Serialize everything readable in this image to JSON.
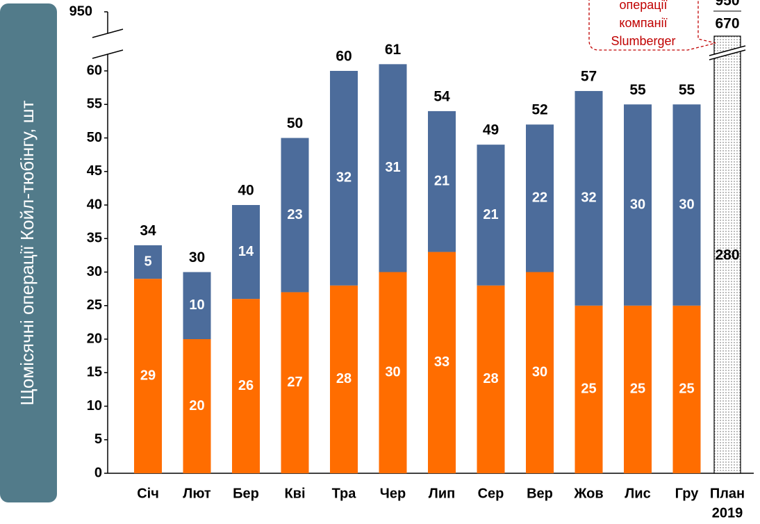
{
  "chart_data": {
    "type": "stacked-bar",
    "y_label": "Щомісячні операції Койл-тюбінгу, шт",
    "categories": [
      "Січ",
      "Лют",
      "Бер",
      "Кві",
      "Тра",
      "Чер",
      "Лип",
      "Сер",
      "Вер",
      "Жов",
      "Лис",
      "Гру"
    ],
    "series": [
      {
        "color": "#ff6d00",
        "values": [
          29,
          20,
          26,
          27,
          28,
          30,
          33,
          28,
          30,
          25,
          25,
          25
        ]
      },
      {
        "color": "#4c6c9b",
        "values": [
          5,
          10,
          14,
          23,
          32,
          31,
          21,
          21,
          22,
          32,
          30,
          30
        ]
      }
    ],
    "totals": [
      34,
      30,
      40,
      50,
      60,
      61,
      54,
      49,
      52,
      57,
      55,
      55
    ],
    "ylim": [
      0,
      60
    ],
    "yticks": [
      0,
      5,
      10,
      15,
      20,
      25,
      30,
      35,
      40,
      45,
      50,
      55,
      60
    ],
    "upper_tick": 950,
    "plan": {
      "category_lines": [
        "План",
        "2019"
      ],
      "inner_label": 280,
      "top_labels": [
        950,
        670
      ]
    },
    "annotation_lines": [
      "операції",
      "компанії",
      "Slumberger"
    ]
  }
}
